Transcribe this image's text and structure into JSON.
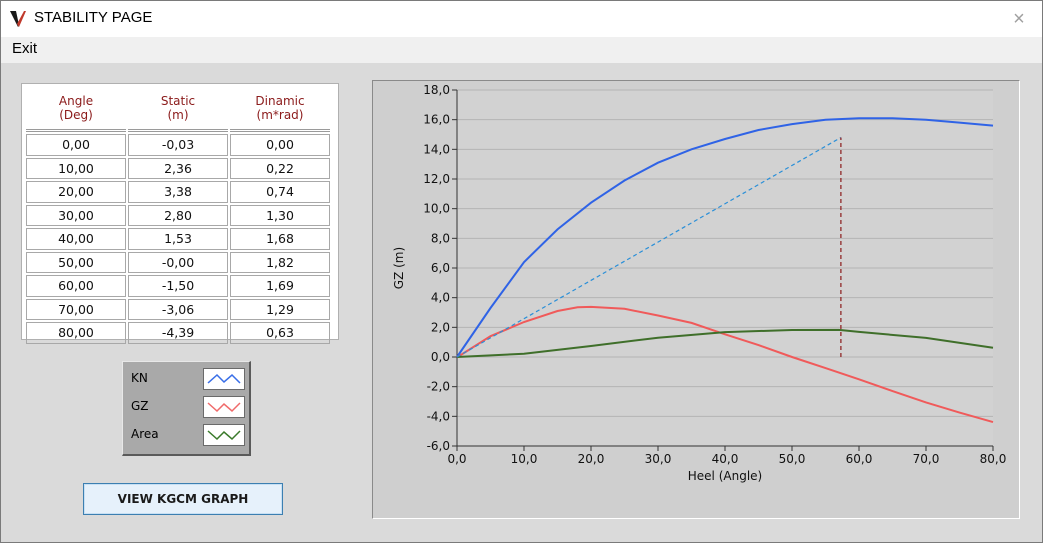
{
  "window": {
    "title": "STABILITY PAGE",
    "close_glyph": "×"
  },
  "menu": {
    "exit_label": "Exit"
  },
  "table": {
    "headers": [
      {
        "line1": "Angle",
        "line2": "(Deg)"
      },
      {
        "line1": "Static",
        "line2": "(m)"
      },
      {
        "line1": "Dinamic",
        "line2": "(m*rad)"
      }
    ],
    "rows": [
      [
        "0,00",
        "-0,03",
        "0,00"
      ],
      [
        "10,00",
        "2,36",
        "0,22"
      ],
      [
        "20,00",
        "3,38",
        "0,74"
      ],
      [
        "30,00",
        "2,80",
        "1,30"
      ],
      [
        "40,00",
        "1,53",
        "1,68"
      ],
      [
        "50,00",
        "-0,00",
        "1,82"
      ],
      [
        "60,00",
        "-1,50",
        "1,69"
      ],
      [
        "70,00",
        "-3,06",
        "1,29"
      ],
      [
        "80,00",
        "-4,39",
        "0,63"
      ]
    ]
  },
  "legend": {
    "items": [
      {
        "label": "KN",
        "color": "#3a6fe8"
      },
      {
        "label": "GZ",
        "color": "#f06a6a"
      },
      {
        "label": "Area",
        "color": "#3a7a2a"
      }
    ]
  },
  "kgcm_button": {
    "label": "VIEW KGCM GRAPH"
  },
  "chart_data": {
    "type": "line",
    "xlabel": "Heel (Angle)",
    "ylabel": "GZ (m)",
    "xlim": [
      0,
      80
    ],
    "ylim": [
      -6,
      18
    ],
    "x_ticks": [
      "0,0",
      "10,0",
      "20,0",
      "30,0",
      "40,0",
      "50,0",
      "60,0",
      "70,0",
      "80,0"
    ],
    "y_ticks": [
      "18,0",
      "16,0",
      "14,0",
      "12,0",
      "10,0",
      "8,0",
      "6,0",
      "4,0",
      "2,0",
      "0,0",
      "-2,0",
      "-4,0",
      "-6,0"
    ],
    "grid": true,
    "series": [
      {
        "name": "KN",
        "color": "#2f63e6",
        "x": [
          0,
          5,
          10,
          15,
          20,
          25,
          30,
          35,
          40,
          45,
          50,
          55,
          60,
          65,
          70,
          75,
          80
        ],
        "y": [
          0,
          3.3,
          6.4,
          8.6,
          10.4,
          11.9,
          13.1,
          14.0,
          14.7,
          15.3,
          15.7,
          16.0,
          16.1,
          16.1,
          16.0,
          15.8,
          15.6
        ]
      },
      {
        "name": "GZ",
        "color": "#f05a5a",
        "x": [
          0,
          5,
          10,
          15,
          18,
          20,
          25,
          30,
          35,
          40,
          45,
          50,
          55,
          60,
          65,
          70,
          75,
          80
        ],
        "y": [
          -0.03,
          1.4,
          2.36,
          3.1,
          3.35,
          3.38,
          3.25,
          2.8,
          2.3,
          1.53,
          0.8,
          0.0,
          -0.75,
          -1.5,
          -2.3,
          -3.06,
          -3.75,
          -4.39
        ]
      },
      {
        "name": "Area",
        "color": "#3f6f2a",
        "x": [
          0,
          10,
          20,
          30,
          40,
          50,
          57,
          60,
          70,
          80
        ],
        "y": [
          0,
          0.22,
          0.74,
          1.3,
          1.68,
          1.82,
          1.83,
          1.69,
          1.29,
          0.63
        ]
      },
      {
        "name": "tangent",
        "color": "#2a8fd8",
        "dashed": true,
        "x": [
          0,
          57.3
        ],
        "y": [
          0,
          14.8
        ]
      },
      {
        "name": "vertical-marker",
        "color": "#8b1a1a",
        "dashed": true,
        "x": [
          57.3,
          57.3
        ],
        "y": [
          0,
          14.8
        ]
      }
    ]
  }
}
